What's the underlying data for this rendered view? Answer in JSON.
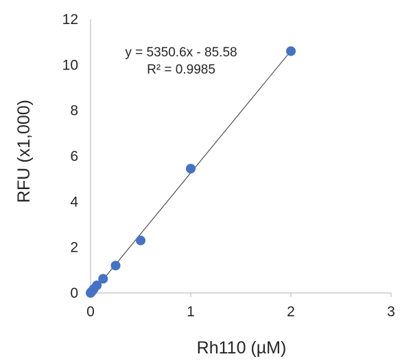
{
  "chart_data": {
    "type": "scatter",
    "xlabel": "Rh110 (µM)",
    "ylabel": "RFU (x1,000)",
    "xlim": [
      0,
      3
    ],
    "ylim": [
      0,
      12
    ],
    "xticks": [
      0,
      1,
      2,
      3
    ],
    "yticks": [
      0,
      2,
      4,
      6,
      8,
      10,
      12
    ],
    "grid": false,
    "legend": "none",
    "series": [
      {
        "color": "#4472c4",
        "x": [
          0,
          0.0039,
          0.0078,
          0.0156,
          0.03125,
          0.0625,
          0.125,
          0.25,
          0.5,
          1,
          2
        ],
        "y": [
          0,
          0.02,
          0.04,
          0.08,
          0.17,
          0.33,
          0.62,
          1.2,
          2.3,
          5.45,
          10.6
        ]
      }
    ],
    "trendline": {
      "type": "linear",
      "color": "#404040",
      "x_range": [
        0,
        2
      ],
      "slope_per_unit": 5.3506,
      "intercept": -0.08558
    },
    "annotations": {
      "equation": "y = 5350.6x - 85.58",
      "r_squared": "R² = 0.9985"
    }
  }
}
